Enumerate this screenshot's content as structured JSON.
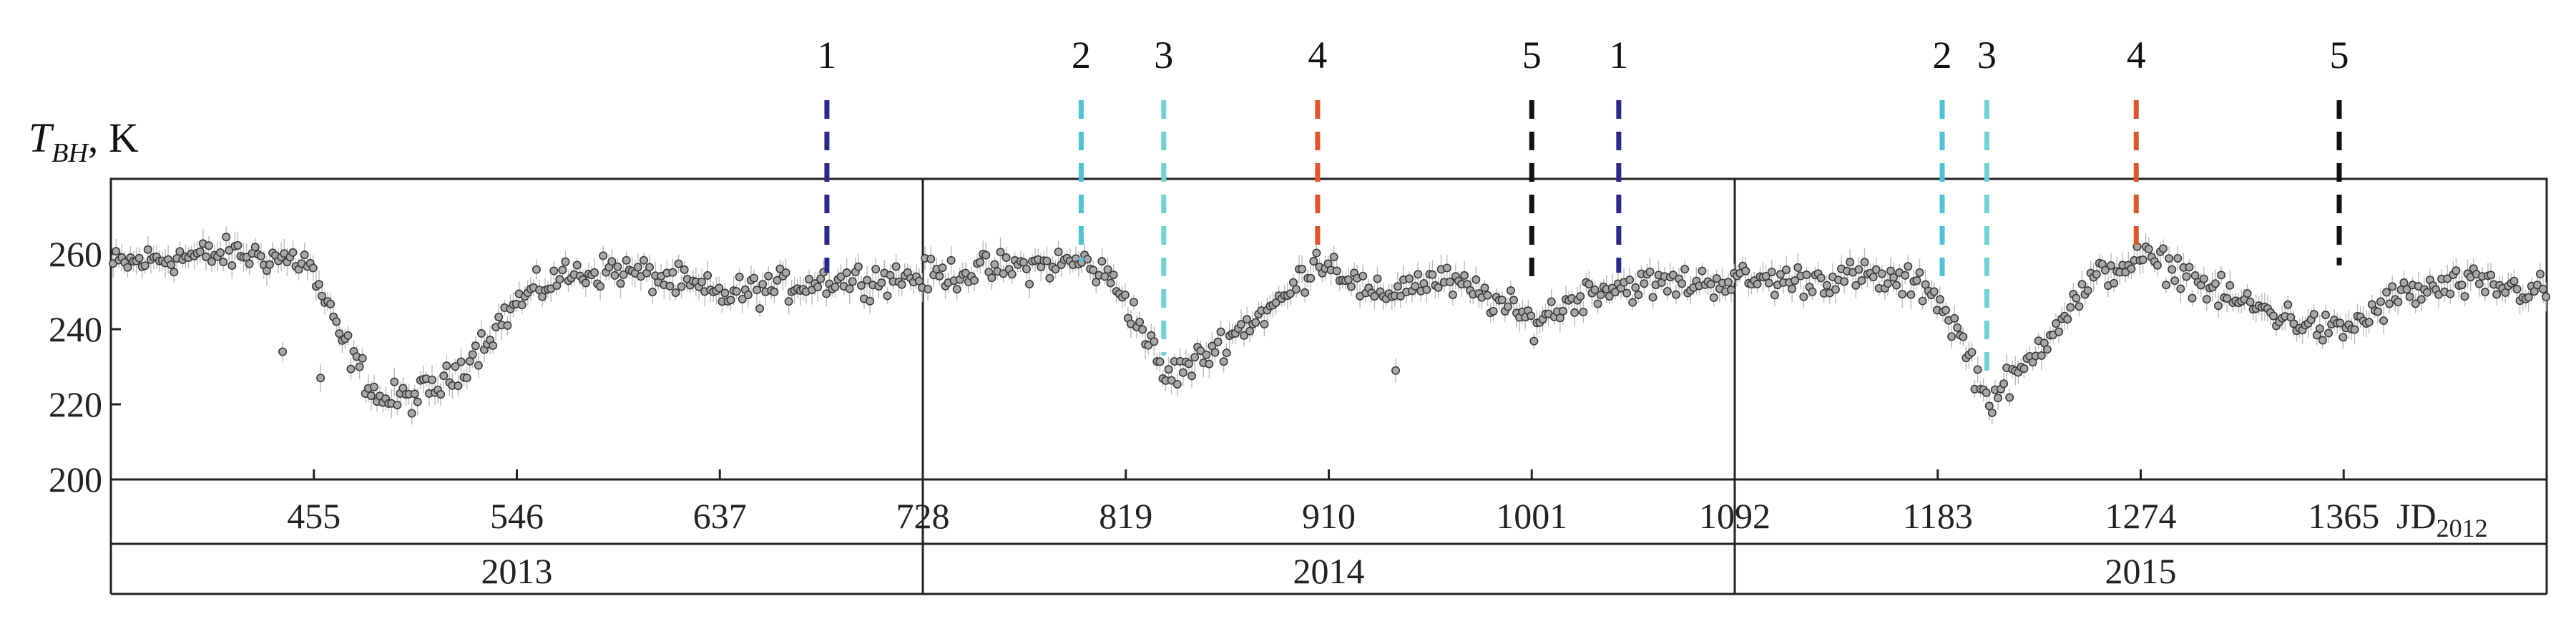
{
  "chart_data": {
    "type": "scatter",
    "ylabel_main": "T",
    "ylabel_sub": "BH",
    "ylabel_unit": ", K",
    "xunit_main": "JD",
    "xunit_sub": "2012",
    "xlim": [
      364,
      1456
    ],
    "ylim": [
      200,
      280
    ],
    "yticks": [
      200,
      220,
      240,
      260
    ],
    "xticks": [
      {
        "value": 455,
        "label": "455"
      },
      {
        "value": 546,
        "label": "546"
      },
      {
        "value": 637,
        "label": "637"
      },
      {
        "value": 728,
        "label": "728"
      },
      {
        "value": 819,
        "label": "819"
      },
      {
        "value": 910,
        "label": "910"
      },
      {
        "value": 1001,
        "label": "1001"
      },
      {
        "value": 1092,
        "label": "1092"
      },
      {
        "value": 1183,
        "label": "1183"
      },
      {
        "value": 1274,
        "label": "1274"
      },
      {
        "value": 1365,
        "label": "1365"
      }
    ],
    "panel_boundaries": [
      728,
      1092
    ],
    "years": [
      {
        "label": "2013",
        "from": 364,
        "to": 728
      },
      {
        "label": "2014",
        "from": 728,
        "to": 1092
      },
      {
        "label": "2015",
        "from": 1092,
        "to": 1456
      }
    ],
    "markers": [
      {
        "label": "1",
        "x": 685,
        "color": "#2a2a8a",
        "y_end": 255
      },
      {
        "label": "2",
        "x": 799,
        "color": "#4fc3d6",
        "y_end": 258
      },
      {
        "label": "3",
        "x": 836,
        "color": "#6fd3d3",
        "y_end": 233
      },
      {
        "label": "4",
        "x": 905,
        "color": "#e0552a",
        "y_end": 261
      },
      {
        "label": "5",
        "x": 1001,
        "color": "#111111",
        "y_end": 252
      },
      {
        "label": "1",
        "x": 1040,
        "color": "#2a2a8a",
        "y_end": 255
      },
      {
        "label": "2",
        "x": 1185,
        "color": "#4fc3d6",
        "y_end": 252
      },
      {
        "label": "3",
        "x": 1205,
        "color": "#6fd3d3",
        "y_end": 228
      },
      {
        "label": "4",
        "x": 1272,
        "color": "#e0552a",
        "y_end": 262
      },
      {
        "label": "5",
        "x": 1363,
        "color": "#111111",
        "y_end": 257
      }
    ],
    "trend": [
      [
        364,
        257
      ],
      [
        390,
        259
      ],
      [
        420,
        260
      ],
      [
        440,
        259
      ],
      [
        452,
        258
      ],
      [
        458,
        250
      ],
      [
        465,
        240
      ],
      [
        475,
        230
      ],
      [
        485,
        221
      ],
      [
        500,
        222
      ],
      [
        515,
        226
      ],
      [
        530,
        236
      ],
      [
        546,
        247
      ],
      [
        565,
        254
      ],
      [
        590,
        256
      ],
      [
        615,
        253
      ],
      [
        637,
        249
      ],
      [
        660,
        251
      ],
      [
        685,
        253
      ],
      [
        728,
        254
      ],
      [
        760,
        256
      ],
      [
        800,
        258
      ],
      [
        815,
        252
      ],
      [
        830,
        236
      ],
      [
        836,
        227
      ],
      [
        850,
        231
      ],
      [
        870,
        240
      ],
      [
        890,
        248
      ],
      [
        905,
        259
      ],
      [
        915,
        256
      ],
      [
        930,
        248
      ],
      [
        945,
        252
      ],
      [
        960,
        253
      ],
      [
        980,
        249
      ],
      [
        1001,
        242
      ],
      [
        1015,
        246
      ],
      [
        1030,
        251
      ],
      [
        1060,
        252
      ],
      [
        1092,
        253
      ],
      [
        1120,
        253
      ],
      [
        1150,
        254
      ],
      [
        1180,
        251
      ],
      [
        1195,
        236
      ],
      [
        1205,
        221
      ],
      [
        1220,
        228
      ],
      [
        1235,
        241
      ],
      [
        1255,
        254
      ],
      [
        1274,
        259
      ],
      [
        1290,
        256
      ],
      [
        1310,
        249
      ],
      [
        1330,
        245
      ],
      [
        1350,
        241
      ],
      [
        1363,
        239
      ],
      [
        1375,
        243
      ],
      [
        1390,
        249
      ],
      [
        1420,
        252
      ],
      [
        1456,
        250
      ]
    ],
    "outliers": [
      [
        441,
        234
      ],
      [
        458,
        227
      ],
      [
        940,
        229
      ]
    ],
    "grid": false,
    "point_color": "#777777",
    "errorbar_color": "#bbbbbb"
  }
}
